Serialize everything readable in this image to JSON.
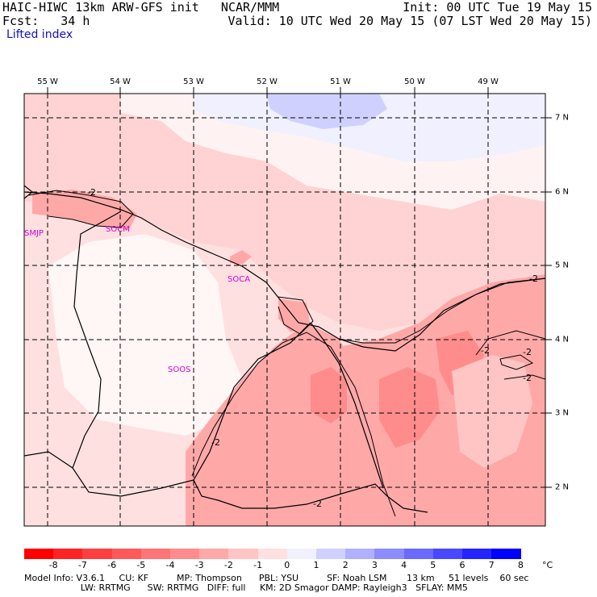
{
  "header": {
    "line1_left": "HAIC-HIWC 13km ARW-GFS init   NCAR/MMM",
    "line1_right": "Init: 00 UTC Tue 19 May 15",
    "line2_left": "Fcst:   34 h",
    "line2_right": "Valid: 10 UTC Wed 20 May 15 (07 LST Wed 20 May 15)",
    "field": "Lifted index"
  },
  "longitudes": [
    "55 W",
    "54 W",
    "53 W",
    "52 W",
    "51 W",
    "50 W",
    "49 W"
  ],
  "latitudes": [
    "7 N",
    "6 N",
    "5 N",
    "4 N",
    "3 N",
    "2 N"
  ],
  "stations": [
    "SMJP",
    "SOCM",
    "SOCA",
    "SOOS"
  ],
  "contour_labels": [
    "-2",
    "-2",
    "-2",
    "-2",
    "-2",
    "-2",
    "-2"
  ],
  "scale": {
    "labels": [
      "-8",
      "-7",
      "-6",
      "-5",
      "-4",
      "-3",
      "-2",
      "-1",
      "0",
      "1",
      "2",
      "3",
      "4",
      "5",
      "6",
      "7",
      "8"
    ],
    "unit": "°C",
    "colors": [
      "#ff0000",
      "#ff2424",
      "#ff4040",
      "#ff5a5a",
      "#ff7474",
      "#ff8c8c",
      "#ffa8a8",
      "#ffc4c4",
      "#ffe0e0",
      "#f0f0ff",
      "#d0d0ff",
      "#b0b0ff",
      "#8c8cff",
      "#6a6aff",
      "#4848ff",
      "#2424ff",
      "#0000ff"
    ]
  },
  "footer": {
    "line1": "Model Info: V3.6.1     CU: KF          MP: Thompson      PBL: YSU          SF: Noah LSM       13 km     51 levels    60 sec",
    "line2": "                    LW: RRTMG      SW: RRTMG   DIFF: full     KM: 2D Smagor DAMP: Rayleigh3   SFLAY: MM5"
  }
}
